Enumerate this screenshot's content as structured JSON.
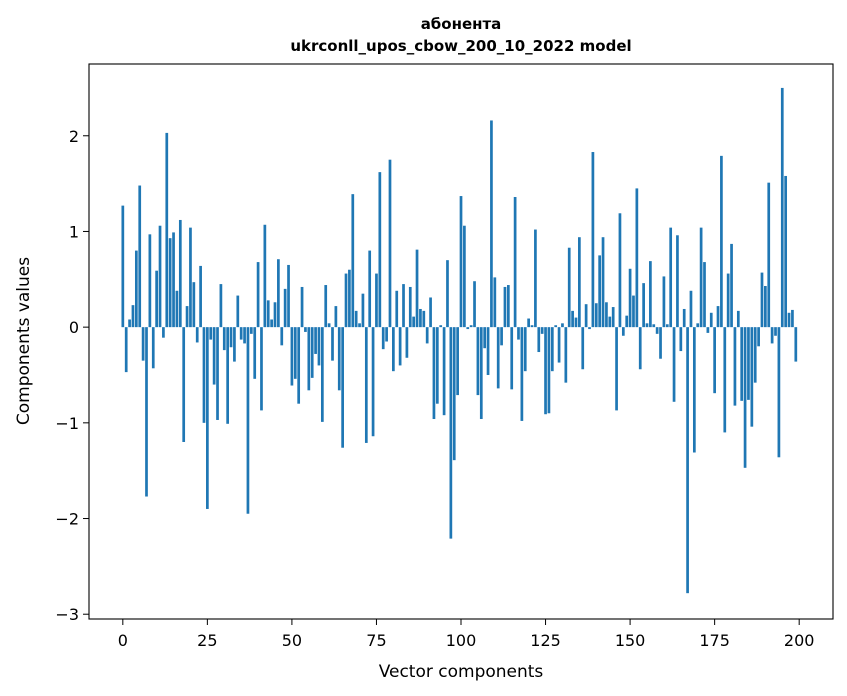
{
  "chart_data": {
    "type": "bar",
    "title": "абонента\nukrconll_upos_cbow_200_10_2022 model",
    "xlabel": "Vector components",
    "ylabel": "Components values",
    "xlim": [
      -10,
      210
    ],
    "ylim": [
      -3.05,
      2.75
    ],
    "xticks": [
      0,
      25,
      50,
      75,
      100,
      125,
      150,
      175,
      200
    ],
    "xtick_labels": [
      "0",
      "25",
      "50",
      "75",
      "100",
      "125",
      "150",
      "175",
      "200"
    ],
    "yticks": [
      -3,
      -2,
      -1,
      0,
      1,
      2
    ],
    "ytick_labels": [
      "−3",
      "−2",
      "−1",
      "0",
      "1",
      "2"
    ],
    "grid": false,
    "legend": "none",
    "bar_color": "#1f77b4",
    "x": [
      0,
      1,
      2,
      3,
      4,
      5,
      6,
      7,
      8,
      9,
      10,
      11,
      12,
      13,
      14,
      15,
      16,
      17,
      18,
      19,
      20,
      21,
      22,
      23,
      24,
      25,
      26,
      27,
      28,
      29,
      30,
      31,
      32,
      33,
      34,
      35,
      36,
      37,
      38,
      39,
      40,
      41,
      42,
      43,
      44,
      45,
      46,
      47,
      48,
      49,
      50,
      51,
      52,
      53,
      54,
      55,
      56,
      57,
      58,
      59,
      60,
      61,
      62,
      63,
      64,
      65,
      66,
      67,
      68,
      69,
      70,
      71,
      72,
      73,
      74,
      75,
      76,
      77,
      78,
      79,
      80,
      81,
      82,
      83,
      84,
      85,
      86,
      87,
      88,
      89,
      90,
      91,
      92,
      93,
      94,
      95,
      96,
      97,
      98,
      99,
      100,
      101,
      102,
      103,
      104,
      105,
      106,
      107,
      108,
      109,
      110,
      111,
      112,
      113,
      114,
      115,
      116,
      117,
      118,
      119,
      120,
      121,
      122,
      123,
      124,
      125,
      126,
      127,
      128,
      129,
      130,
      131,
      132,
      133,
      134,
      135,
      136,
      137,
      138,
      139,
      140,
      141,
      142,
      143,
      144,
      145,
      146,
      147,
      148,
      149,
      150,
      151,
      152,
      153,
      154,
      155,
      156,
      157,
      158,
      159,
      160,
      161,
      162,
      163,
      164,
      165,
      166,
      167,
      168,
      169,
      170,
      171,
      172,
      173,
      174,
      175,
      176,
      177,
      178,
      179,
      180,
      181,
      182,
      183,
      184,
      185,
      186,
      187,
      188,
      189,
      190,
      191,
      192,
      193,
      194,
      195,
      196,
      197,
      198,
      199
    ],
    "values": [
      1.27,
      -0.47,
      0.08,
      0.23,
      0.8,
      1.48,
      -0.35,
      -1.77,
      0.97,
      -0.43,
      0.59,
      1.06,
      -0.11,
      2.03,
      0.93,
      0.99,
      0.38,
      1.12,
      -1.2,
      0.22,
      1.04,
      0.47,
      -0.16,
      0.64,
      -1.0,
      -1.9,
      -0.13,
      -0.6,
      -0.97,
      0.45,
      -0.24,
      -1.01,
      -0.21,
      -0.36,
      0.33,
      -0.13,
      -0.17,
      -1.95,
      -0.07,
      -0.54,
      0.68,
      -0.87,
      1.07,
      0.28,
      0.08,
      0.26,
      0.71,
      -0.19,
      0.4,
      0.65,
      -0.61,
      -0.54,
      -0.8,
      0.42,
      -0.05,
      -0.66,
      -0.53,
      -0.28,
      -0.4,
      -0.99,
      0.44,
      0.04,
      -0.35,
      0.22,
      -0.66,
      -1.26,
      0.56,
      0.6,
      1.39,
      0.17,
      0.04,
      0.35,
      -1.21,
      0.8,
      -1.14,
      0.56,
      1.62,
      -0.23,
      -0.15,
      1.75,
      -0.46,
      0.38,
      -0.4,
      0.45,
      -0.32,
      0.42,
      0.11,
      0.81,
      0.19,
      0.17,
      -0.17,
      0.31,
      -0.96,
      -0.8,
      0.02,
      -0.92,
      0.7,
      -2.21,
      -1.39,
      -0.71,
      1.37,
      1.06,
      -0.02,
      0.02,
      0.48,
      -0.71,
      -0.96,
      -0.22,
      -0.5,
      2.16,
      0.52,
      -0.64,
      -0.19,
      0.42,
      0.44,
      -0.65,
      1.36,
      -0.13,
      -0.98,
      -0.46,
      0.09,
      0.02,
      1.02,
      -0.26,
      -0.07,
      -0.91,
      -0.9,
      -0.46,
      0.02,
      -0.37,
      0.04,
      -0.58,
      0.83,
      0.17,
      0.1,
      0.94,
      -0.44,
      0.24,
      -0.02,
      1.83,
      0.25,
      0.75,
      0.94,
      0.26,
      0.11,
      0.21,
      -0.87,
      1.19,
      -0.09,
      0.12,
      0.61,
      0.33,
      1.45,
      -0.44,
      0.46,
      0.04,
      0.69,
      0.03,
      -0.07,
      -0.33,
      0.53,
      0.03,
      1.04,
      -0.78,
      0.96,
      -0.25,
      0.19,
      -2.78,
      0.38,
      -1.31,
      0.04,
      1.04,
      0.68,
      -0.06,
      0.15,
      -0.69,
      0.22,
      1.79,
      -1.1,
      0.56,
      0.87,
      -0.82,
      0.17,
      -0.77,
      -1.47,
      -0.76,
      -1.04,
      -0.58,
      -0.2,
      0.57,
      0.43,
      1.51,
      -0.17,
      -0.09,
      -1.36,
      2.5,
      1.58,
      0.15,
      0.18,
      -0.36
    ]
  }
}
